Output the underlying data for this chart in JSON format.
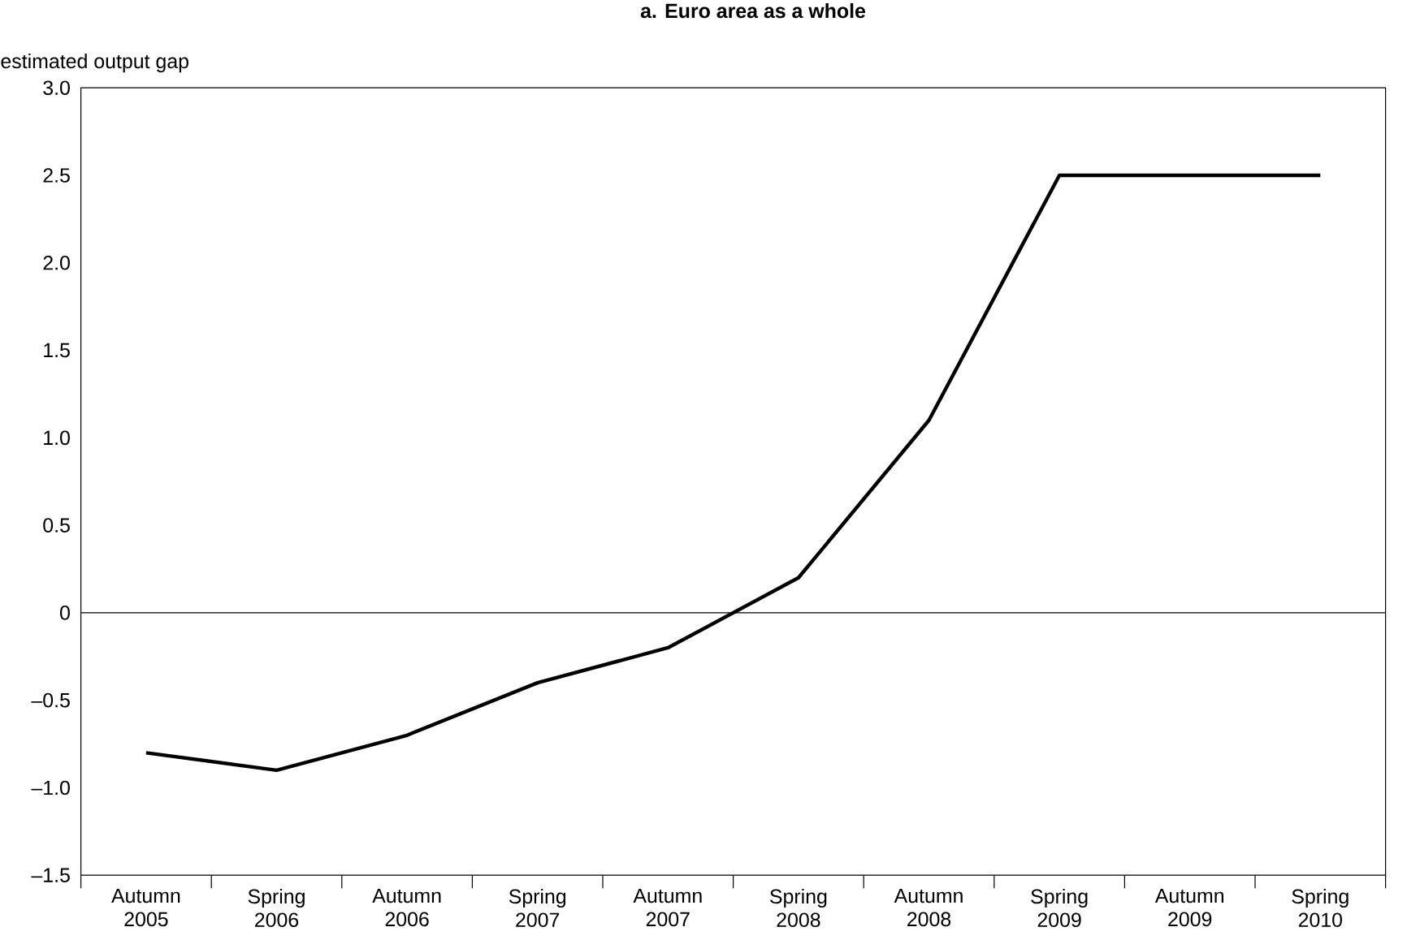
{
  "chart_data": {
    "type": "line",
    "title": "a.  Euro area as a whole",
    "ylabel": "estimated output gap",
    "categories": [
      "Autumn 2005",
      "Spring 2006",
      "Autumn 2006",
      "Spring 2007",
      "Autumn 2007",
      "Spring 2008",
      "Autumn 2008",
      "Spring 2009",
      "Autumn 2009",
      "Spring 2010"
    ],
    "values": [
      -0.8,
      -0.9,
      -0.7,
      -0.4,
      -0.2,
      0.2,
      1.1,
      2.5,
      2.5,
      2.5
    ],
    "color": "#000000",
    "ylim": [
      -1.5,
      3.0
    ],
    "yticks": [
      {
        "value": 3.0,
        "label": "3.0"
      },
      {
        "value": 2.5,
        "label": "2.5"
      },
      {
        "value": 2.0,
        "label": "2.0"
      },
      {
        "value": 1.5,
        "label": "1.5"
      },
      {
        "value": 1.0,
        "label": "1.0"
      },
      {
        "value": 0.5,
        "label": "0.5"
      },
      0,
      {
        "value": -0.5,
        "label": "–0.5"
      },
      {
        "value": -1.0,
        "label": "–1.0"
      },
      {
        "value": -1.5,
        "label": "–1.5"
      }
    ],
    "ref_lines": [
      {
        "axis": "y",
        "value": 0,
        "color": "#000000"
      }
    ],
    "grid": false,
    "marker": "none",
    "line_style": "solid"
  }
}
